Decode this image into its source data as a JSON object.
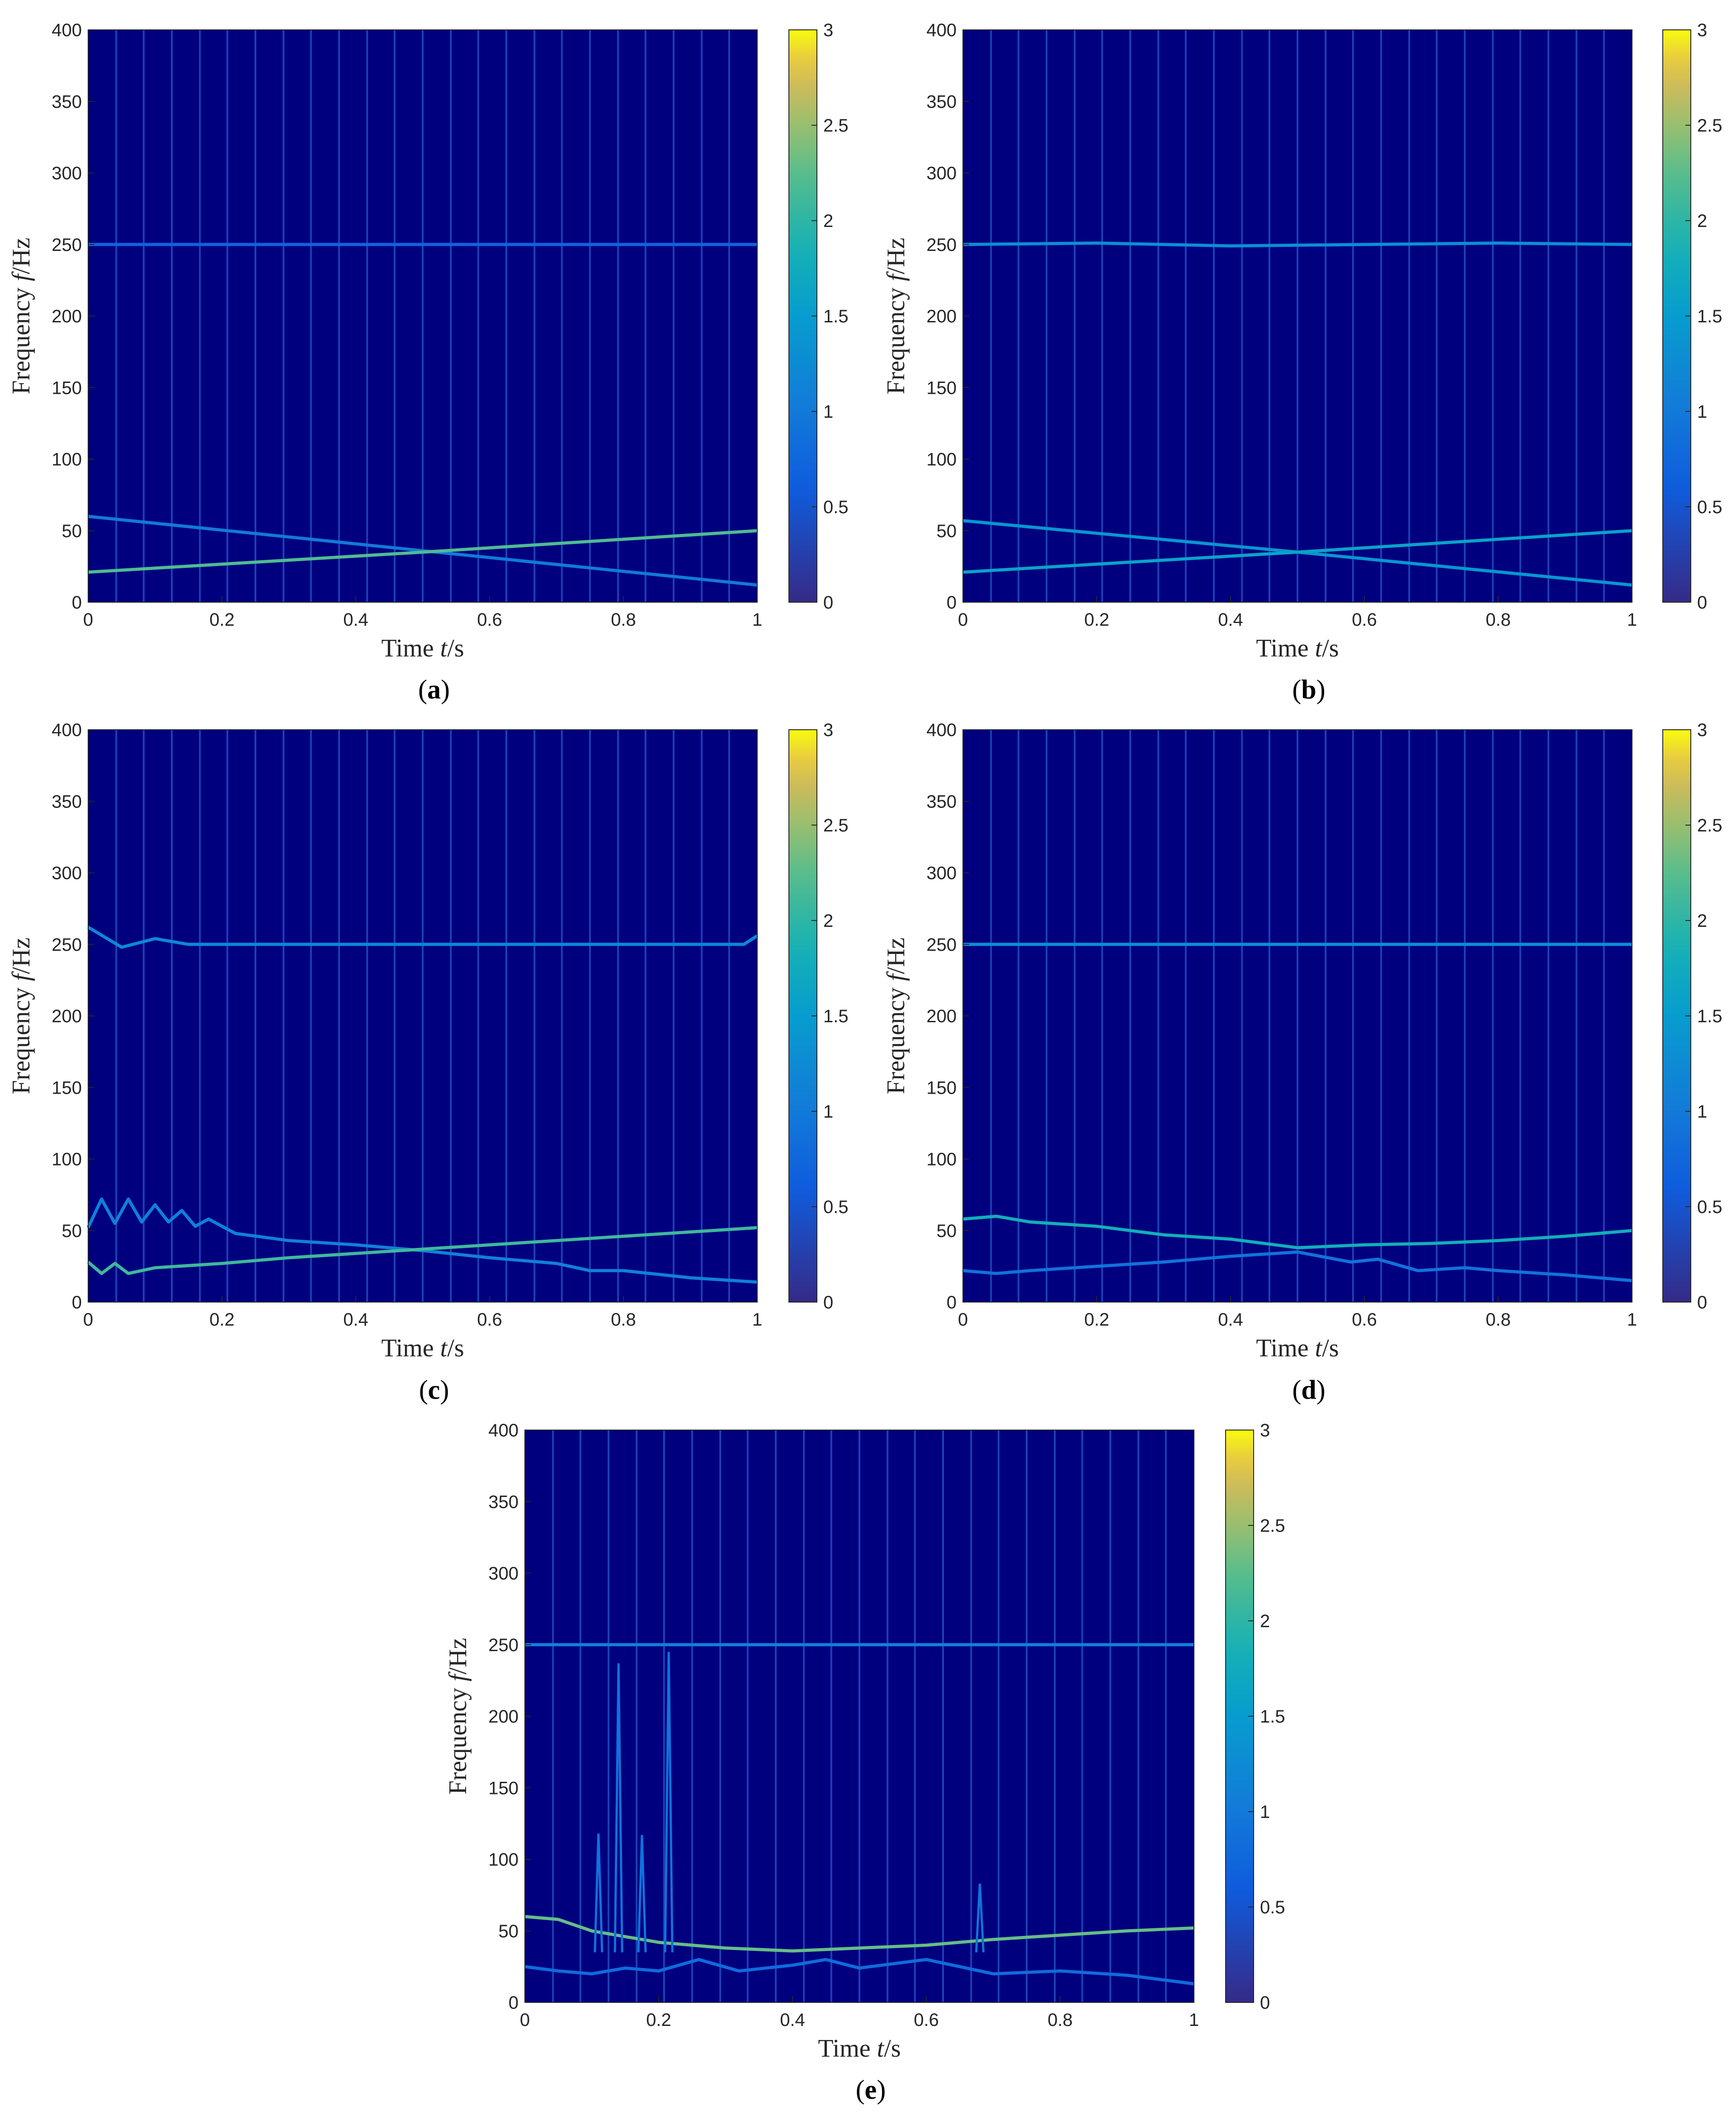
{
  "colors": {
    "background": "#00007f",
    "ridge_low": "#4a3ce0",
    "ridge_mid": "#14b8c8",
    "ridge_high": "#f2d21a"
  },
  "colorbar": {
    "ticks": [
      "0",
      "0.5",
      "1",
      "1.5",
      "2",
      "2.5",
      "3"
    ],
    "colormap": "parula",
    "range": [
      0,
      3
    ]
  },
  "chart_data": [
    {
      "panel": "a",
      "type": "heatmap",
      "xlabel": "Time",
      "xlabel_var": "t",
      "xlabel_unit": "/s",
      "ylabel": "Frequency",
      "ylabel_var": "f",
      "ylabel_unit": "/Hz",
      "xlim": [
        0,
        1
      ],
      "ylim": [
        0,
        400
      ],
      "xticks": [
        "0",
        "0.2",
        "0.4",
        "0.6",
        "0.8",
        "1"
      ],
      "yticks": [
        "0",
        "50",
        "100",
        "150",
        "200",
        "250",
        "300",
        "350",
        "400"
      ],
      "impulse_times": [
        0.042,
        0.083,
        0.125,
        0.167,
        0.208,
        0.25,
        0.292,
        0.333,
        0.375,
        0.417,
        0.458,
        0.5,
        0.542,
        0.583,
        0.625,
        0.667,
        0.708,
        0.75,
        0.792,
        0.833,
        0.875,
        0.917,
        0.958
      ],
      "ridges": [
        {
          "name": "250 Hz component",
          "points": [
            [
              0,
              250
            ],
            [
              1,
              250
            ]
          ],
          "level": 0.7
        },
        {
          "name": "decreasing chirp",
          "points": [
            [
              0,
              60
            ],
            [
              0.5,
              36
            ],
            [
              1,
              12
            ]
          ],
          "level": 1.0
        },
        {
          "name": "increasing chirp",
          "points": [
            [
              0,
              21
            ],
            [
              0.5,
              35
            ],
            [
              1,
              50
            ]
          ],
          "level": 2.2
        }
      ]
    },
    {
      "panel": "b",
      "type": "heatmap",
      "xlabel": "Time",
      "xlabel_var": "t",
      "xlabel_unit": "/s",
      "ylabel": "Frequency",
      "ylabel_var": "f",
      "ylabel_unit": "/Hz",
      "xlim": [
        0,
        1
      ],
      "ylim": [
        0,
        400
      ],
      "xticks": [
        "0",
        "0.2",
        "0.4",
        "0.6",
        "0.8",
        "1"
      ],
      "yticks": [
        "0",
        "50",
        "100",
        "150",
        "200",
        "250",
        "300",
        "350",
        "400"
      ],
      "impulse_times": [
        0.042,
        0.083,
        0.125,
        0.167,
        0.208,
        0.25,
        0.292,
        0.333,
        0.375,
        0.417,
        0.458,
        0.5,
        0.542,
        0.583,
        0.625,
        0.667,
        0.708,
        0.75,
        0.792,
        0.833,
        0.875,
        0.917,
        0.958
      ],
      "ridges": [
        {
          "name": "250 Hz component",
          "points": [
            [
              0,
              250
            ],
            [
              0.2,
              251
            ],
            [
              0.4,
              249
            ],
            [
              0.6,
              250
            ],
            [
              0.8,
              251
            ],
            [
              1,
              250
            ]
          ],
          "level": 1.3
        },
        {
          "name": "decreasing chirp",
          "points": [
            [
              0,
              57
            ],
            [
              0.5,
              35
            ],
            [
              1,
              12
            ]
          ],
          "level": 1.4
        },
        {
          "name": "increasing chirp",
          "points": [
            [
              0,
              21
            ],
            [
              0.5,
              35
            ],
            [
              1,
              50
            ]
          ],
          "level": 1.6
        }
      ]
    },
    {
      "panel": "c",
      "type": "heatmap",
      "xlabel": "Time",
      "xlabel_var": "t",
      "xlabel_unit": "/s",
      "ylabel": "Frequency",
      "ylabel_var": "f",
      "ylabel_unit": "/Hz",
      "xlim": [
        0,
        1
      ],
      "ylim": [
        0,
        400
      ],
      "xticks": [
        "0",
        "0.2",
        "0.4",
        "0.6",
        "0.8",
        "1"
      ],
      "yticks": [
        "0",
        "50",
        "100",
        "150",
        "200",
        "250",
        "300",
        "350",
        "400"
      ],
      "impulse_times": [
        0.042,
        0.083,
        0.125,
        0.167,
        0.208,
        0.25,
        0.292,
        0.333,
        0.375,
        0.417,
        0.458,
        0.5,
        0.542,
        0.583,
        0.625,
        0.667,
        0.708,
        0.75,
        0.792,
        0.833,
        0.875,
        0.917,
        0.958
      ],
      "ridges": [
        {
          "name": "250 Hz component",
          "points": [
            [
              0,
              262
            ],
            [
              0.05,
              248
            ],
            [
              0.1,
              254
            ],
            [
              0.15,
              250
            ],
            [
              0.5,
              250
            ],
            [
              0.98,
              250
            ],
            [
              1,
              256
            ]
          ],
          "level": 1.2
        },
        {
          "name": "upper oscillating ridge",
          "points": [
            [
              0,
              52
            ],
            [
              0.02,
              72
            ],
            [
              0.04,
              55
            ],
            [
              0.06,
              72
            ],
            [
              0.08,
              56
            ],
            [
              0.1,
              68
            ],
            [
              0.12,
              56
            ],
            [
              0.14,
              64
            ],
            [
              0.16,
              53
            ],
            [
              0.18,
              58
            ],
            [
              0.22,
              48
            ],
            [
              0.3,
              43
            ],
            [
              0.4,
              40
            ],
            [
              0.5,
              36
            ],
            [
              0.6,
              31
            ],
            [
              0.7,
              27
            ],
            [
              0.75,
              22
            ],
            [
              0.8,
              22
            ],
            [
              0.9,
              17
            ],
            [
              1,
              14
            ]
          ],
          "level": 1.1
        },
        {
          "name": "lower ridge",
          "points": [
            [
              0,
              28
            ],
            [
              0.02,
              20
            ],
            [
              0.04,
              27
            ],
            [
              0.06,
              20
            ],
            [
              0.1,
              24
            ],
            [
              0.2,
              27
            ],
            [
              0.3,
              31
            ],
            [
              0.4,
              34
            ],
            [
              0.5,
              37
            ],
            [
              0.6,
              40
            ],
            [
              0.7,
              43
            ],
            [
              0.8,
              46
            ],
            [
              0.9,
              49
            ],
            [
              1,
              52
            ]
          ],
          "level": 2.1
        }
      ]
    },
    {
      "panel": "d",
      "type": "heatmap",
      "xlabel": "Time",
      "xlabel_var": "t",
      "xlabel_unit": "/s",
      "ylabel": "Frequency",
      "ylabel_var": "f",
      "ylabel_unit": "/Hz",
      "xlim": [
        0,
        1
      ],
      "ylim": [
        0,
        400
      ],
      "xticks": [
        "0",
        "0.2",
        "0.4",
        "0.6",
        "0.8",
        "1"
      ],
      "yticks": [
        "0",
        "50",
        "100",
        "150",
        "200",
        "250",
        "300",
        "350",
        "400"
      ],
      "impulse_times": [
        0.042,
        0.083,
        0.125,
        0.167,
        0.208,
        0.25,
        0.292,
        0.333,
        0.375,
        0.417,
        0.458,
        0.5,
        0.542,
        0.583,
        0.625,
        0.667,
        0.708,
        0.75,
        0.792,
        0.833,
        0.875,
        0.917,
        0.958
      ],
      "ridges": [
        {
          "name": "250 Hz component",
          "points": [
            [
              0,
              250
            ],
            [
              0.5,
              250
            ],
            [
              1,
              250
            ]
          ],
          "level": 1.3
        },
        {
          "name": "upper ridge",
          "points": [
            [
              0,
              58
            ],
            [
              0.05,
              60
            ],
            [
              0.1,
              56
            ],
            [
              0.2,
              53
            ],
            [
              0.3,
              47
            ],
            [
              0.4,
              44
            ],
            [
              0.45,
              41
            ],
            [
              0.5,
              38
            ],
            [
              0.6,
              40
            ],
            [
              0.7,
              41
            ],
            [
              0.8,
              43
            ],
            [
              0.9,
              46
            ],
            [
              1,
              50
            ]
          ],
          "level": 1.8
        },
        {
          "name": "lower ridge",
          "points": [
            [
              0,
              22
            ],
            [
              0.05,
              20
            ],
            [
              0.1,
              22
            ],
            [
              0.2,
              25
            ],
            [
              0.3,
              28
            ],
            [
              0.4,
              32
            ],
            [
              0.5,
              35
            ],
            [
              0.58,
              28
            ],
            [
              0.62,
              30
            ],
            [
              0.68,
              22
            ],
            [
              0.75,
              24
            ],
            [
              0.8,
              22
            ],
            [
              0.9,
              19
            ],
            [
              1,
              15
            ]
          ],
          "level": 0.9
        }
      ]
    },
    {
      "panel": "e",
      "type": "heatmap",
      "xlabel": "Time",
      "xlabel_var": "t",
      "xlabel_unit": "/s",
      "ylabel": "Frequency",
      "ylabel_var": "f",
      "ylabel_unit": "/Hz",
      "xlim": [
        0,
        1
      ],
      "ylim": [
        0,
        400
      ],
      "xticks": [
        "0",
        "0.2",
        "0.4",
        "0.6",
        "0.8",
        "1"
      ],
      "yticks": [
        "0",
        "50",
        "100",
        "150",
        "200",
        "250",
        "300",
        "350",
        "400"
      ],
      "impulse_times": [
        0.042,
        0.083,
        0.125,
        0.167,
        0.208,
        0.25,
        0.292,
        0.333,
        0.375,
        0.417,
        0.458,
        0.5,
        0.542,
        0.583,
        0.625,
        0.667,
        0.708,
        0.75,
        0.792,
        0.833,
        0.875,
        0.917,
        0.958
      ],
      "ridges": [
        {
          "name": "250 Hz component",
          "points": [
            [
              0,
              250
            ],
            [
              0.5,
              250
            ],
            [
              1,
              250
            ]
          ],
          "level": 1.1
        },
        {
          "name": "upper ridge",
          "points": [
            [
              0,
              60
            ],
            [
              0.05,
              58
            ],
            [
              0.1,
              50
            ],
            [
              0.2,
              42
            ],
            [
              0.3,
              38
            ],
            [
              0.4,
              36
            ],
            [
              0.5,
              38
            ],
            [
              0.6,
              40
            ],
            [
              0.7,
              44
            ],
            [
              0.8,
              47
            ],
            [
              0.9,
              50
            ],
            [
              1,
              52
            ]
          ],
          "level": 2.3
        },
        {
          "name": "lower ridge",
          "points": [
            [
              0,
              25
            ],
            [
              0.05,
              22
            ],
            [
              0.1,
              20
            ],
            [
              0.15,
              24
            ],
            [
              0.2,
              22
            ],
            [
              0.26,
              30
            ],
            [
              0.32,
              22
            ],
            [
              0.4,
              26
            ],
            [
              0.45,
              30
            ],
            [
              0.5,
              24
            ],
            [
              0.6,
              30
            ],
            [
              0.7,
              20
            ],
            [
              0.8,
              22
            ],
            [
              0.9,
              19
            ],
            [
              1,
              13
            ]
          ],
          "level": 0.8
        },
        {
          "name": "spikes",
          "points": [
            [
              0.11,
              118
            ],
            [
              0.14,
              237
            ],
            [
              0.175,
              117
            ],
            [
              0.215,
              245
            ],
            [
              0.68,
              83
            ]
          ],
          "level": 0.9
        }
      ]
    }
  ]
}
